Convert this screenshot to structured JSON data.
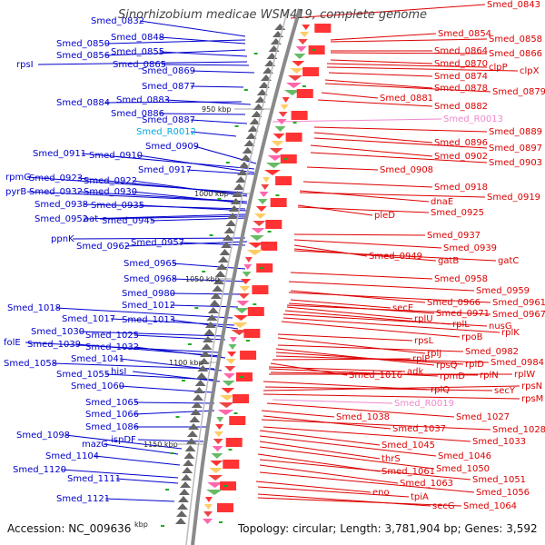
{
  "title": "Sinorhizobium medicae WSM419, complete genome",
  "accession": "Accession: NC_009636",
  "kbp_unit": "kbp",
  "topology": "Topology: circular; Length: 3,781,904 bp; Genes: 3,592",
  "ticks": [
    "950 kbp",
    "1000 kbp",
    "1050 kbp",
    "1100 kbp",
    "1150 kbp"
  ],
  "left_labels": [
    "Smed_0832",
    "Smed_0850",
    "Smed_0848",
    "Smed_0856",
    "Smed_0855",
    "rpsI",
    "Smed_0865",
    "Smed_0869",
    "Smed_0877",
    "Smed_0884",
    "Smed_0883",
    "Smed_0886",
    "Smed_0887",
    "Smed_R0012",
    "Smed_0909",
    "Smed_0911",
    "Smed_0910",
    "Smed_0917",
    "rpmG",
    "Smed_0923",
    "Smed_0922",
    "pyrB",
    "Smed_0932",
    "Smed_0930",
    "Smed_0938",
    "Smed_0935",
    "Smed_0952",
    "aat",
    "Smed_0945",
    "ppnK",
    "Smed_0962",
    "Smed_0957",
    "Smed_0965",
    "Smed_0968",
    "Smed_0980",
    "Smed_1012",
    "Smed_1018",
    "Smed_1017",
    "Smed_1013",
    "Smed_1030",
    "Smed_1025",
    "folE",
    "Smed_1039",
    "Smed_1032",
    "Smed_1058",
    "Smed_1041",
    "Smed_1055",
    "hisI",
    "Smed_1060",
    "Smed_1065",
    "Smed_1066",
    "Smed_1086",
    "Smed_1098",
    "ispDF",
    "mazG",
    "Smed_1104",
    "Smed_1120",
    "Smed_1111",
    "Smed_1121"
  ],
  "right_labels": [
    "Smed_0843",
    "Smed_0854",
    "Smed_0858",
    "Smed_0864",
    "Smed_0866",
    "Smed_0870",
    "clpP",
    "clpX",
    "Smed_0874",
    "Smed_0878",
    "Smed_0879",
    "Smed_0881",
    "Smed_0882",
    "Smed_R0013",
    "Smed_0889",
    "Smed_0896",
    "Smed_0897",
    "Smed_0902",
    "Smed_0903",
    "Smed_0908",
    "Smed_0918",
    "dnaE",
    "Smed_0919",
    "pleD",
    "Smed_0925",
    "Smed_0937",
    "Smed_0939",
    "Smed_0949",
    "gatB",
    "gatC",
    "Smed_0958",
    "Smed_0959",
    "Smed_0966",
    "Smed_0961",
    "secE",
    "Smed_0971",
    "Smed_0967",
    "rplU",
    "rplL",
    "nusG",
    "rplK",
    "rpoB",
    "rpsL",
    "rplJ",
    "Smed_0982",
    "rpsQ",
    "rplD",
    "Smed_0984",
    "rplP",
    "Smed_1016",
    "adk",
    "rpmD",
    "rplN",
    "rplW",
    "rplQ",
    "secY",
    "rpsN",
    "rpsM",
    "Smed_R0019",
    "Smed_1027",
    "Smed_1038",
    "Smed_1037",
    "Smed_1028",
    "Smed_1033",
    "Smed_1045",
    "Smed_1046",
    "thrS",
    "Smed_1050",
    "Smed_1061",
    "Smed_1051",
    "Smed_1063",
    "Smed_1056",
    "eno",
    "tpiA",
    "secG",
    "Smed_1064"
  ],
  "colors": {
    "left": "#0000cc",
    "right": "#dd0000",
    "rna_left": "#00aadd",
    "rna_right": "#ee88cc",
    "backbone": "#888888"
  }
}
